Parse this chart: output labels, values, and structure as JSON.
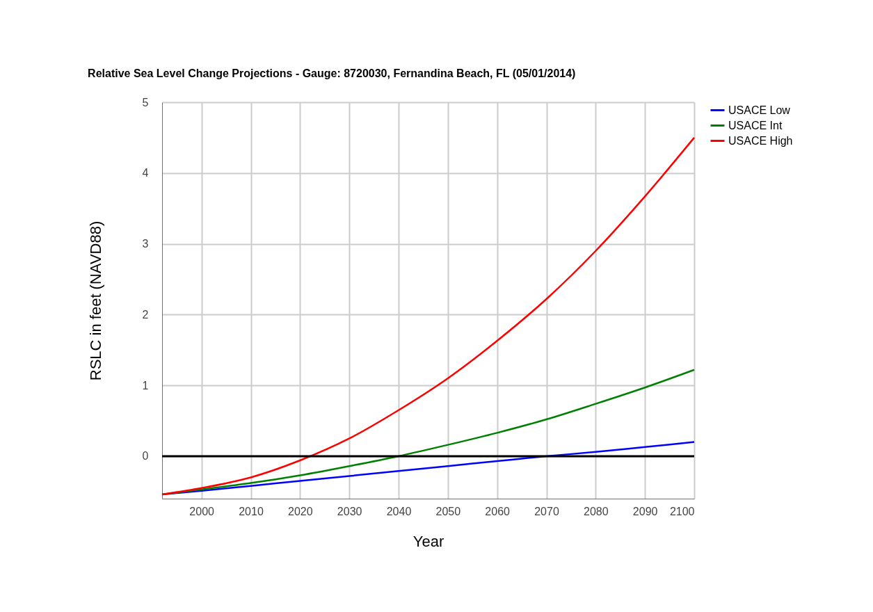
{
  "chart_data": {
    "type": "line",
    "title": "Relative Sea Level Change Projections - Gauge: 8720030, Fernandina Beach, FL (05/01/2014)",
    "xlabel": "Year",
    "ylabel": "RSLC in feet (NAVD88)",
    "x": [
      1992,
      2000,
      2010,
      2020,
      2030,
      2040,
      2050,
      2060,
      2070,
      2080,
      2090,
      2100
    ],
    "series": [
      {
        "name": "USACE Low",
        "color": "#0000ff",
        "values": [
          -0.54,
          -0.49,
          -0.42,
          -0.35,
          -0.28,
          -0.21,
          -0.14,
          -0.07,
          0.0,
          0.06,
          0.13,
          0.2
        ]
      },
      {
        "name": "USACE Int",
        "color": "#008000",
        "values": [
          -0.54,
          -0.47,
          -0.38,
          -0.27,
          -0.14,
          0.0,
          0.16,
          0.33,
          0.52,
          0.74,
          0.97,
          1.22
        ]
      },
      {
        "name": "USACE High",
        "color": "#ff0000",
        "values": [
          -0.54,
          -0.45,
          -0.3,
          -0.06,
          0.25,
          0.65,
          1.1,
          1.63,
          2.22,
          2.9,
          3.67,
          4.5
        ]
      }
    ],
    "xlim": [
      1992,
      2100
    ],
    "xticks": [
      2000,
      2010,
      2020,
      2030,
      2040,
      2050,
      2060,
      2070,
      2080,
      2090,
      2100
    ],
    "ylim": [
      -0.6,
      5
    ],
    "yticks": [
      0,
      1,
      2,
      3,
      4,
      5
    ],
    "ref_lines": [
      {
        "axis": "y",
        "value": 0,
        "color": "#000000"
      }
    ],
    "grid": true,
    "legend": "top right",
    "marker": "none",
    "line_style": "solid"
  }
}
